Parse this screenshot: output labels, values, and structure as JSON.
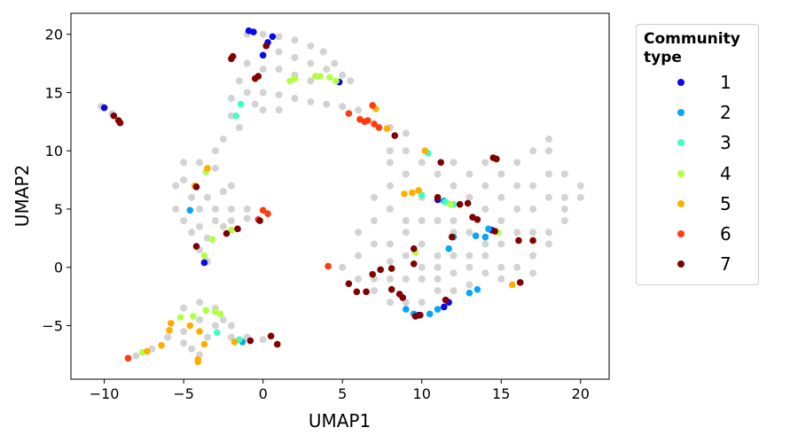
{
  "chart_data": {
    "type": "scatter",
    "xlabel": "UMAP1",
    "ylabel": "UMAP2",
    "xlim": [
      -12.1,
      21.8
    ],
    "ylim": [
      -9.6,
      21.8
    ],
    "xticks": [
      {
        "value": -10,
        "label": "−10"
      },
      {
        "value": -5,
        "label": "−5"
      },
      0,
      5,
      10,
      15,
      20
    ],
    "yticks": [
      {
        "value": -5,
        "label": "−5"
      },
      0,
      5,
      10,
      15,
      20
    ],
    "legend_title": "Community type",
    "legend_position": "outside right",
    "background": {
      "color": "#d3d3d3",
      "x": [
        -1,
        0,
        1,
        2,
        3,
        3.8,
        4.5,
        5,
        5.5,
        4,
        3,
        2,
        1,
        0,
        1,
        2,
        3,
        -1,
        -1.5,
        -1,
        0,
        1,
        2,
        3,
        4,
        5,
        -2,
        -2,
        -1.5,
        -2.5,
        -3,
        0,
        1,
        -0.5,
        6,
        8,
        9,
        -5,
        -4,
        -3,
        -5.5,
        -4.5,
        -3.5,
        -2.5,
        -5.5,
        -4,
        -3,
        -2,
        -1,
        -5,
        -4,
        -3,
        -2,
        -1,
        -4.5,
        -3.5,
        -4,
        -3.5,
        -2.5,
        -5,
        -2,
        -5,
        -4,
        -3,
        -2.5,
        -2,
        -3,
        -4,
        -5,
        -6,
        -5,
        -3.5,
        -2,
        -1,
        0,
        -4.5,
        -7,
        -8,
        -4,
        8,
        8,
        9,
        9,
        10,
        11,
        12,
        8,
        7,
        8,
        9,
        10,
        11,
        12,
        7,
        6,
        7,
        8,
        9,
        10,
        11,
        12,
        13,
        14,
        15,
        16,
        17,
        18,
        19,
        20,
        20,
        19,
        18,
        18,
        17,
        16,
        15,
        14,
        13,
        15,
        16,
        17,
        18,
        19,
        17,
        18,
        16,
        15,
        16,
        17,
        18,
        19,
        14,
        13,
        6,
        5,
        6,
        7,
        8,
        9,
        10,
        11,
        12,
        13,
        14,
        15,
        7,
        8,
        9,
        10,
        11,
        12,
        13,
        10,
        11,
        17,
        14,
        15,
        12,
        9,
        8,
        10,
        14,
        13,
        12,
        -10.2,
        -9.5
      ],
      "y": [
        20,
        20,
        19.8,
        19.5,
        19,
        18.5,
        17.5,
        16.5,
        16,
        17,
        17.5,
        18,
        18.5,
        17,
        17,
        16.5,
        16,
        17.5,
        16,
        15,
        15,
        14.8,
        14.5,
        14.2,
        14,
        13.8,
        14.5,
        13,
        12,
        11,
        10,
        13.5,
        13.5,
        14,
        13.5,
        12,
        11.5,
        9,
        9,
        8.5,
        7,
        6,
        6,
        6.5,
        5,
        5,
        5,
        5,
        5,
        4,
        3.5,
        4,
        4,
        4.2,
        3,
        2.5,
        1.5,
        0.5,
        3.5,
        7.5,
        7,
        -3.5,
        -3,
        -3.5,
        -4.5,
        -5,
        -5,
        -4.5,
        -5.5,
        -6,
        -6.5,
        -6,
        -6,
        -6,
        -6.2,
        -7,
        -7,
        -7.6,
        -7.5,
        10,
        9,
        8,
        10,
        9,
        8,
        7,
        7,
        6,
        5,
        4,
        4,
        4,
        4,
        4,
        3,
        2,
        2,
        3,
        2,
        1,
        1,
        1,
        1,
        0,
        0,
        1,
        2,
        4,
        6,
        7,
        8,
        10,
        11,
        10,
        9,
        8,
        7,
        6,
        6,
        5,
        5,
        6,
        6,
        7,
        8,
        7,
        4,
        3,
        3,
        3,
        5,
        5,
        3,
        1,
        0,
        -1,
        -1,
        -1,
        -1,
        -1,
        -1,
        -0.5,
        0,
        -0.5,
        -1,
        -2,
        -3,
        -3,
        -3,
        -2,
        -2,
        -1.5,
        0,
        0,
        -0.5,
        2,
        2,
        3,
        1,
        0.5,
        6,
        9,
        8,
        9,
        13.8,
        13.2
      ]
    },
    "series": [
      {
        "name": "1",
        "color": "#0a0ae6",
        "x": [
          -0.9,
          -0.6,
          0.3,
          0.6,
          0,
          4.8,
          -10,
          11,
          11.7,
          11.4,
          -3.7,
          14.4,
          9.8
        ],
        "y": [
          20.3,
          20.2,
          19.3,
          19.8,
          18.2,
          15.9,
          13.7,
          5.8,
          -3,
          -3.4,
          0.4,
          3.2,
          -4.1
        ]
      },
      {
        "name": "2",
        "color": "#0aa5f5",
        "x": [
          -4.6,
          12,
          11.7,
          13.4,
          14,
          14.2,
          9,
          9.5,
          10.5,
          11,
          13,
          13.5,
          -1.3,
          11.4
        ],
        "y": [
          4.9,
          2.6,
          1.6,
          2.7,
          2.6,
          3.3,
          -3.6,
          -4,
          -4,
          -3.6,
          -2.2,
          -1.9,
          -6.4,
          5.7
        ]
      },
      {
        "name": "3",
        "color": "#3dffc0",
        "x": [
          -1.7,
          -1.4,
          10.4,
          10,
          11.5,
          -1.5,
          -2.9,
          12
        ],
        "y": [
          13,
          14,
          9.8,
          6.2,
          5.6,
          -6.2,
          -5.6,
          5.4
        ]
      },
      {
        "name": "4",
        "color": "#b2ff45",
        "x": [
          1.7,
          2,
          3.3,
          3.6,
          4.2,
          4.6,
          -3.6,
          -3.2,
          -3.7,
          -5.2,
          -4.4,
          -3.6,
          -3,
          -2.7,
          -7.6,
          11.8,
          14.8,
          9.6,
          -2
        ],
        "y": [
          16,
          16.2,
          16.4,
          16.4,
          16.3,
          16,
          8.2,
          2.4,
          1,
          -4.3,
          -4.2,
          -3.7,
          -3.8,
          -4,
          -7.3,
          5.4,
          3,
          1.3,
          3.2
        ]
      },
      {
        "name": "5",
        "color": "#ffae00",
        "x": [
          -4.3,
          -3.5,
          7.1,
          7.8,
          10.2,
          8.9,
          9.4,
          9.8,
          -5.8,
          -5.9,
          -4.6,
          -4,
          -3.7,
          -4.1,
          -4.1,
          -6.4,
          -7.3,
          -1.8,
          15.7
        ],
        "y": [
          7,
          8.5,
          13.6,
          11.9,
          10,
          6.3,
          6.4,
          6.6,
          -4.8,
          -5.4,
          -5,
          -5.5,
          -6.6,
          -7.9,
          -8.1,
          -6.7,
          -7.2,
          -6.4,
          -1.5
        ]
      },
      {
        "name": "6",
        "color": "#ff3b10",
        "x": [
          5.4,
          6.1,
          6.4,
          6.6,
          7,
          7.3,
          6.9,
          0,
          0.3,
          -0.3,
          -8.5,
          4.1
        ],
        "y": [
          13.2,
          12.7,
          12.5,
          12.6,
          12.3,
          12,
          13.9,
          4.9,
          4.6,
          4.1,
          -7.8,
          0.1
        ]
      },
      {
        "name": "7",
        "color": "#800000",
        "x": [
          0.2,
          -1.9,
          -2,
          -0.5,
          -0.3,
          -9.4,
          -9.1,
          -9,
          -4.2,
          8.3,
          11.2,
          11,
          12.4,
          12.9,
          13.2,
          13.5,
          14.5,
          14.7,
          14.6,
          16.1,
          17,
          16.2,
          11.9,
          9.5,
          9.5,
          8.1,
          7.4,
          6.9,
          5.4,
          5.9,
          6.5,
          8.1,
          8.6,
          8.8,
          9.6,
          9.9,
          11.5,
          -4.2,
          -2.3,
          -1.6,
          -0.2,
          -0.8,
          0.5,
          0.9
        ],
        "y": [
          19,
          18.1,
          17.9,
          16.2,
          16.4,
          13,
          12.6,
          12.4,
          6.9,
          11.3,
          9,
          6,
          5.4,
          5.5,
          4.3,
          4.1,
          9.4,
          9.3,
          3.1,
          2.3,
          2.3,
          -1.3,
          2.6,
          1.6,
          0.3,
          -0.1,
          -0.2,
          -0.6,
          -1.4,
          -2.1,
          -2.1,
          -1.9,
          -2.3,
          -2.6,
          -4.2,
          -4.1,
          -2.8,
          1.8,
          2.9,
          3.3,
          4,
          -6.3,
          -5.9,
          -6.6
        ]
      }
    ]
  }
}
